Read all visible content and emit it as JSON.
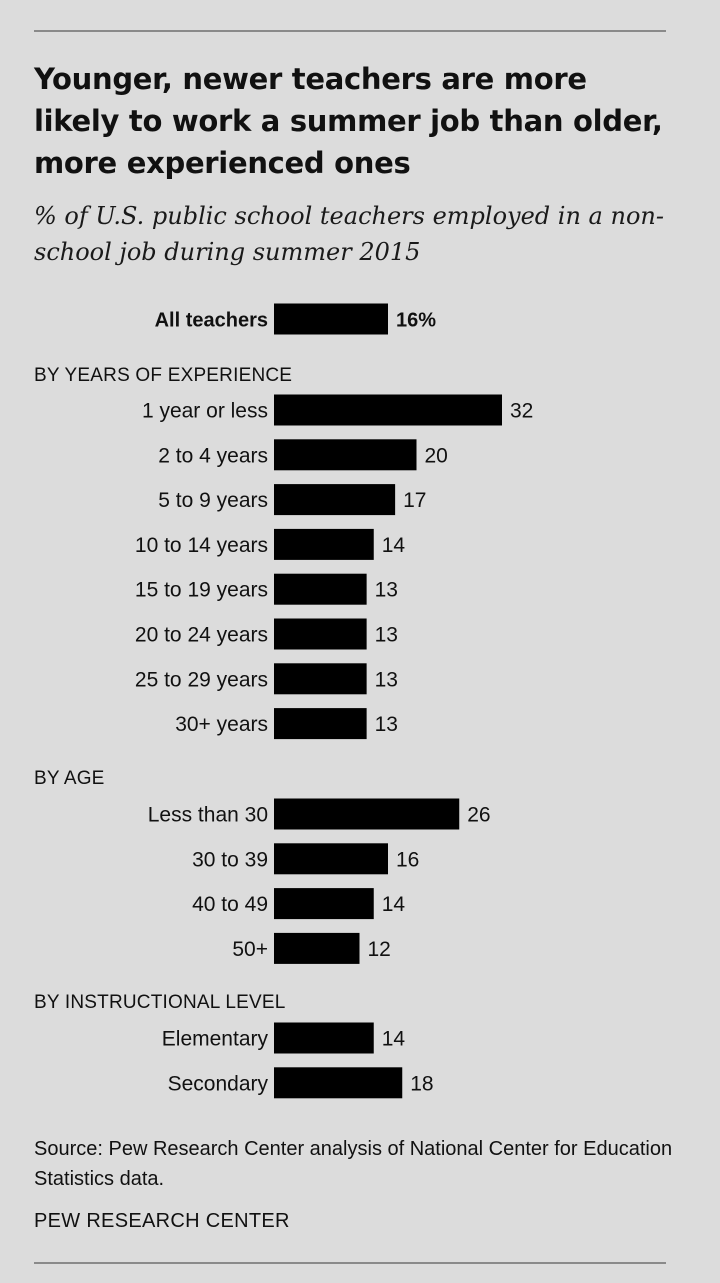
{
  "title": "Younger, newer teachers are more likely to work a summer job than older, more experienced ones",
  "subtitle": "% of U.S. public school teachers employed in a non-school job during summer 2015",
  "source": "Source: Pew Research Center analysis of National Center for Education Statistics data.",
  "brand": "PEW RESEARCH CENTER",
  "colors": {
    "background": "#dcdcdc",
    "bar": "#000000",
    "rule": "#8a8a8a"
  },
  "chart_data": {
    "type": "bar",
    "orientation": "horizontal",
    "title": "Younger, newer teachers are more likely to work a summer job than older, more experienced ones",
    "subtitle": "% of U.S. public school teachers employed in a non-school job during summer 2015",
    "xlabel": "",
    "ylabel": "",
    "grid": false,
    "xlim": [
      0,
      32
    ],
    "overall": {
      "label": "All teachers",
      "value": 16,
      "value_label": "16%"
    },
    "groups": [
      {
        "name": "BY YEARS OF EXPERIENCE",
        "categories": [
          "1 year or less",
          "2 to 4 years",
          "5 to 9 years",
          "10 to 14 years",
          "15 to 19 years",
          "20 to 24 years",
          "25 to 29 years",
          "30+ years"
        ],
        "values": [
          32,
          20,
          17,
          14,
          13,
          13,
          13,
          13
        ]
      },
      {
        "name": "BY AGE",
        "categories": [
          "Less than 30",
          "30 to 39",
          "40 to 49",
          "50+"
        ],
        "values": [
          26,
          16,
          14,
          12
        ]
      },
      {
        "name": "BY INSTRUCTIONAL LEVEL",
        "categories": [
          "Elementary",
          "Secondary"
        ],
        "values": [
          14,
          18
        ]
      }
    ]
  }
}
